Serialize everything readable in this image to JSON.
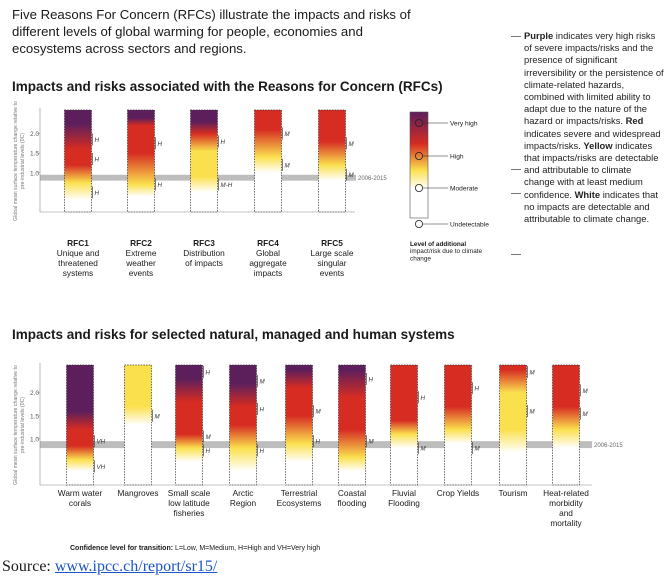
{
  "intro": "Five Reasons For Concern (RFCs) illustrate the impacts and risks of different levels of global warming for people, economies and ecosystems across sectors and regions.",
  "legend_text": {
    "purple_word": "Purple",
    "purple_text": " indicates very high risks of severe impacts/risks and the presence of significant irreversibility or the persistence of climate-related hazards, combined with limited ability to adapt due to the nature of the hazard or impacts/risks.",
    "red_word": "Red",
    "red_text": " indicates severe and widespread impacts/risks.",
    "yellow_word": "Yellow",
    "yellow_text": " indicates that impacts/risks are detectable and attributable to climate change with at least medium confidence.",
    "white_word": "White",
    "white_text": " indicates that no impacts are detectable and attributable to climate change."
  },
  "confidence_note": {
    "label": "Confidence level for transition:",
    "text": " L=Low, M=Medium, H=High and VH=Very high"
  },
  "source": {
    "prefix": "Source: ",
    "link": "www.ipcc.ch/report/sr15/"
  },
  "colors": {
    "white": "#ffffff",
    "yellow": "#fbe04e",
    "red": "#d62c22",
    "purple": "#5c1f5c",
    "band": "#bdbdbd"
  },
  "chart_data": [
    {
      "type": "bar",
      "title": "Impacts and risks associated with the Reasons for Concern (RFCs)",
      "ylabel": "Global mean surface temperature change relative to pre-industrial levels (0C)",
      "yticks": [
        "2.0",
        "1.5",
        "1.0"
      ],
      "ylim": [
        0,
        2.6
      ],
      "reference_band": {
        "label": "2006-2015",
        "range": [
          0.8,
          0.95
        ]
      },
      "risk_scale": {
        "title": "Level of additional impact/risk due to climate change",
        "levels": [
          "Very high",
          "High",
          "Moderate",
          "Undetectable"
        ]
      },
      "categories": [
        {
          "name": "RFC1",
          "desc": "Unique and threatened systems"
        },
        {
          "name": "RFC2",
          "desc": "Extreme weather events"
        },
        {
          "name": "RFC3",
          "desc": "Distribution of impacts"
        },
        {
          "name": "RFC4",
          "desc": "Global aggregate impacts"
        },
        {
          "name": "RFC5",
          "desc": "Large scale singular events"
        }
      ],
      "series": [
        {
          "stops": [
            [
              0.3,
              "white"
            ],
            [
              0.75,
              "yellow"
            ],
            [
              1.2,
              "red"
            ],
            [
              1.6,
              "red"
            ],
            [
              2.25,
              "purple"
            ]
          ],
          "labels": [
            [
              0.5,
              "H"
            ],
            [
              1.35,
              "H"
            ],
            [
              1.85,
              "H"
            ]
          ]
        },
        {
          "stops": [
            [
              0.4,
              "white"
            ],
            [
              0.7,
              "yellow"
            ],
            [
              1.5,
              "red"
            ],
            [
              2.2,
              "red"
            ],
            [
              2.4,
              "purple"
            ]
          ],
          "labels": [
            [
              0.7,
              "H"
            ],
            [
              1.75,
              "H"
            ]
          ]
        },
        {
          "stops": [
            [
              0.5,
              "white"
            ],
            [
              0.9,
              "yellow"
            ],
            [
              1.55,
              "yellow"
            ],
            [
              2.0,
              "red"
            ],
            [
              2.3,
              "purple"
            ]
          ],
          "labels": [
            [
              0.7,
              "M-H"
            ],
            [
              1.8,
              "H"
            ]
          ]
        },
        {
          "stops": [
            [
              1.0,
              "white"
            ],
            [
              1.4,
              "yellow"
            ],
            [
              2.1,
              "red"
            ],
            [
              2.5,
              "red"
            ]
          ],
          "labels": [
            [
              1.2,
              "M"
            ],
            [
              2.0,
              "M"
            ]
          ]
        },
        {
          "stops": [
            [
              0.8,
              "white"
            ],
            [
              1.2,
              "yellow"
            ],
            [
              1.8,
              "red"
            ],
            [
              2.5,
              "red"
            ]
          ],
          "labels": [
            [
              0.95,
              "M"
            ],
            [
              1.75,
              "M"
            ]
          ]
        }
      ]
    },
    {
      "type": "bar",
      "title": "Impacts and risks for selected natural, managed and human systems",
      "ylabel": "Global mean surface temperature change relative to pre-industrial levels (0C)",
      "yticks": [
        "2.0",
        "1.5",
        "1.0"
      ],
      "ylim": [
        0,
        2.6
      ],
      "reference_band": {
        "label": "2006-2015",
        "range": [
          0.8,
          0.95
        ]
      },
      "categories": [
        {
          "name": "Warm water corals"
        },
        {
          "name": "Mangroves"
        },
        {
          "name": "Small scale low latitude fisheries"
        },
        {
          "name": "Arctic Region"
        },
        {
          "name": "Terrestrial Ecosystems"
        },
        {
          "name": "Coastal flooding"
        },
        {
          "name": "Fluvial Flooding"
        },
        {
          "name": "Crop Yields"
        },
        {
          "name": "Tourism"
        },
        {
          "name": "Heat-related morbidity and mortality"
        }
      ],
      "series": [
        {
          "stops": [
            [
              0.3,
              "white"
            ],
            [
              0.55,
              "yellow"
            ],
            [
              0.85,
              "red"
            ],
            [
              1.2,
              "red"
            ],
            [
              1.6,
              "purple"
            ]
          ],
          "labels": [
            [
              0.4,
              "VH"
            ],
            [
              0.95,
              "VH"
            ]
          ]
        },
        {
          "stops": [
            [
              1.3,
              "white"
            ],
            [
              1.7,
              "yellow"
            ],
            [
              2.5,
              "yellow"
            ]
          ],
          "labels": [
            [
              1.5,
              "M"
            ]
          ]
        },
        {
          "stops": [
            [
              0.5,
              "white"
            ],
            [
              0.8,
              "yellow"
            ],
            [
              1.1,
              "red"
            ],
            [
              1.8,
              "red"
            ],
            [
              2.3,
              "purple"
            ]
          ],
          "labels": [
            [
              0.75,
              "H"
            ],
            [
              1.05,
              "M"
            ],
            [
              2.45,
              "H"
            ]
          ]
        },
        {
          "stops": [
            [
              0.3,
              "white"
            ],
            [
              0.8,
              "yellow"
            ],
            [
              1.3,
              "red"
            ],
            [
              1.7,
              "red"
            ],
            [
              2.2,
              "purple"
            ]
          ],
          "labels": [
            [
              0.75,
              "H"
            ],
            [
              1.65,
              "H"
            ],
            [
              2.25,
              "M"
            ]
          ]
        },
        {
          "stops": [
            [
              0.5,
              "white"
            ],
            [
              0.9,
              "yellow"
            ],
            [
              1.5,
              "red"
            ],
            [
              2.1,
              "red"
            ],
            [
              2.5,
              "purple"
            ]
          ],
          "labels": [
            [
              0.95,
              "H"
            ],
            [
              1.6,
              "M"
            ]
          ]
        },
        {
          "stops": [
            [
              0.3,
              "white"
            ],
            [
              0.6,
              "yellow"
            ],
            [
              1.2,
              "red"
            ],
            [
              1.9,
              "red"
            ],
            [
              2.5,
              "purple"
            ]
          ],
          "labels": [
            [
              0.95,
              "M"
            ],
            [
              2.3,
              "H"
            ]
          ]
        },
        {
          "stops": [
            [
              0.8,
              "white"
            ],
            [
              1.1,
              "yellow"
            ],
            [
              1.4,
              "red"
            ],
            [
              2.5,
              "red"
            ]
          ],
          "labels": [
            [
              0.8,
              "M"
            ],
            [
              1.9,
              "H"
            ]
          ]
        },
        {
          "stops": [
            [
              0.9,
              "white"
            ],
            [
              1.2,
              "yellow"
            ],
            [
              1.7,
              "red"
            ],
            [
              2.5,
              "red"
            ]
          ],
          "labels": [
            [
              0.8,
              "M"
            ],
            [
              2.1,
              "H"
            ]
          ]
        },
        {
          "stops": [
            [
              0.7,
              "white"
            ],
            [
              1.2,
              "yellow"
            ],
            [
              2.0,
              "yellow"
            ],
            [
              2.5,
              "red"
            ]
          ],
          "labels": [
            [
              1.6,
              "M"
            ],
            [
              2.45,
              "M"
            ]
          ]
        },
        {
          "stops": [
            [
              0.8,
              "white"
            ],
            [
              1.2,
              "yellow"
            ],
            [
              1.7,
              "red"
            ],
            [
              2.5,
              "red"
            ]
          ],
          "labels": [
            [
              1.55,
              "M"
            ],
            [
              2.05,
              "M"
            ]
          ]
        }
      ]
    }
  ]
}
